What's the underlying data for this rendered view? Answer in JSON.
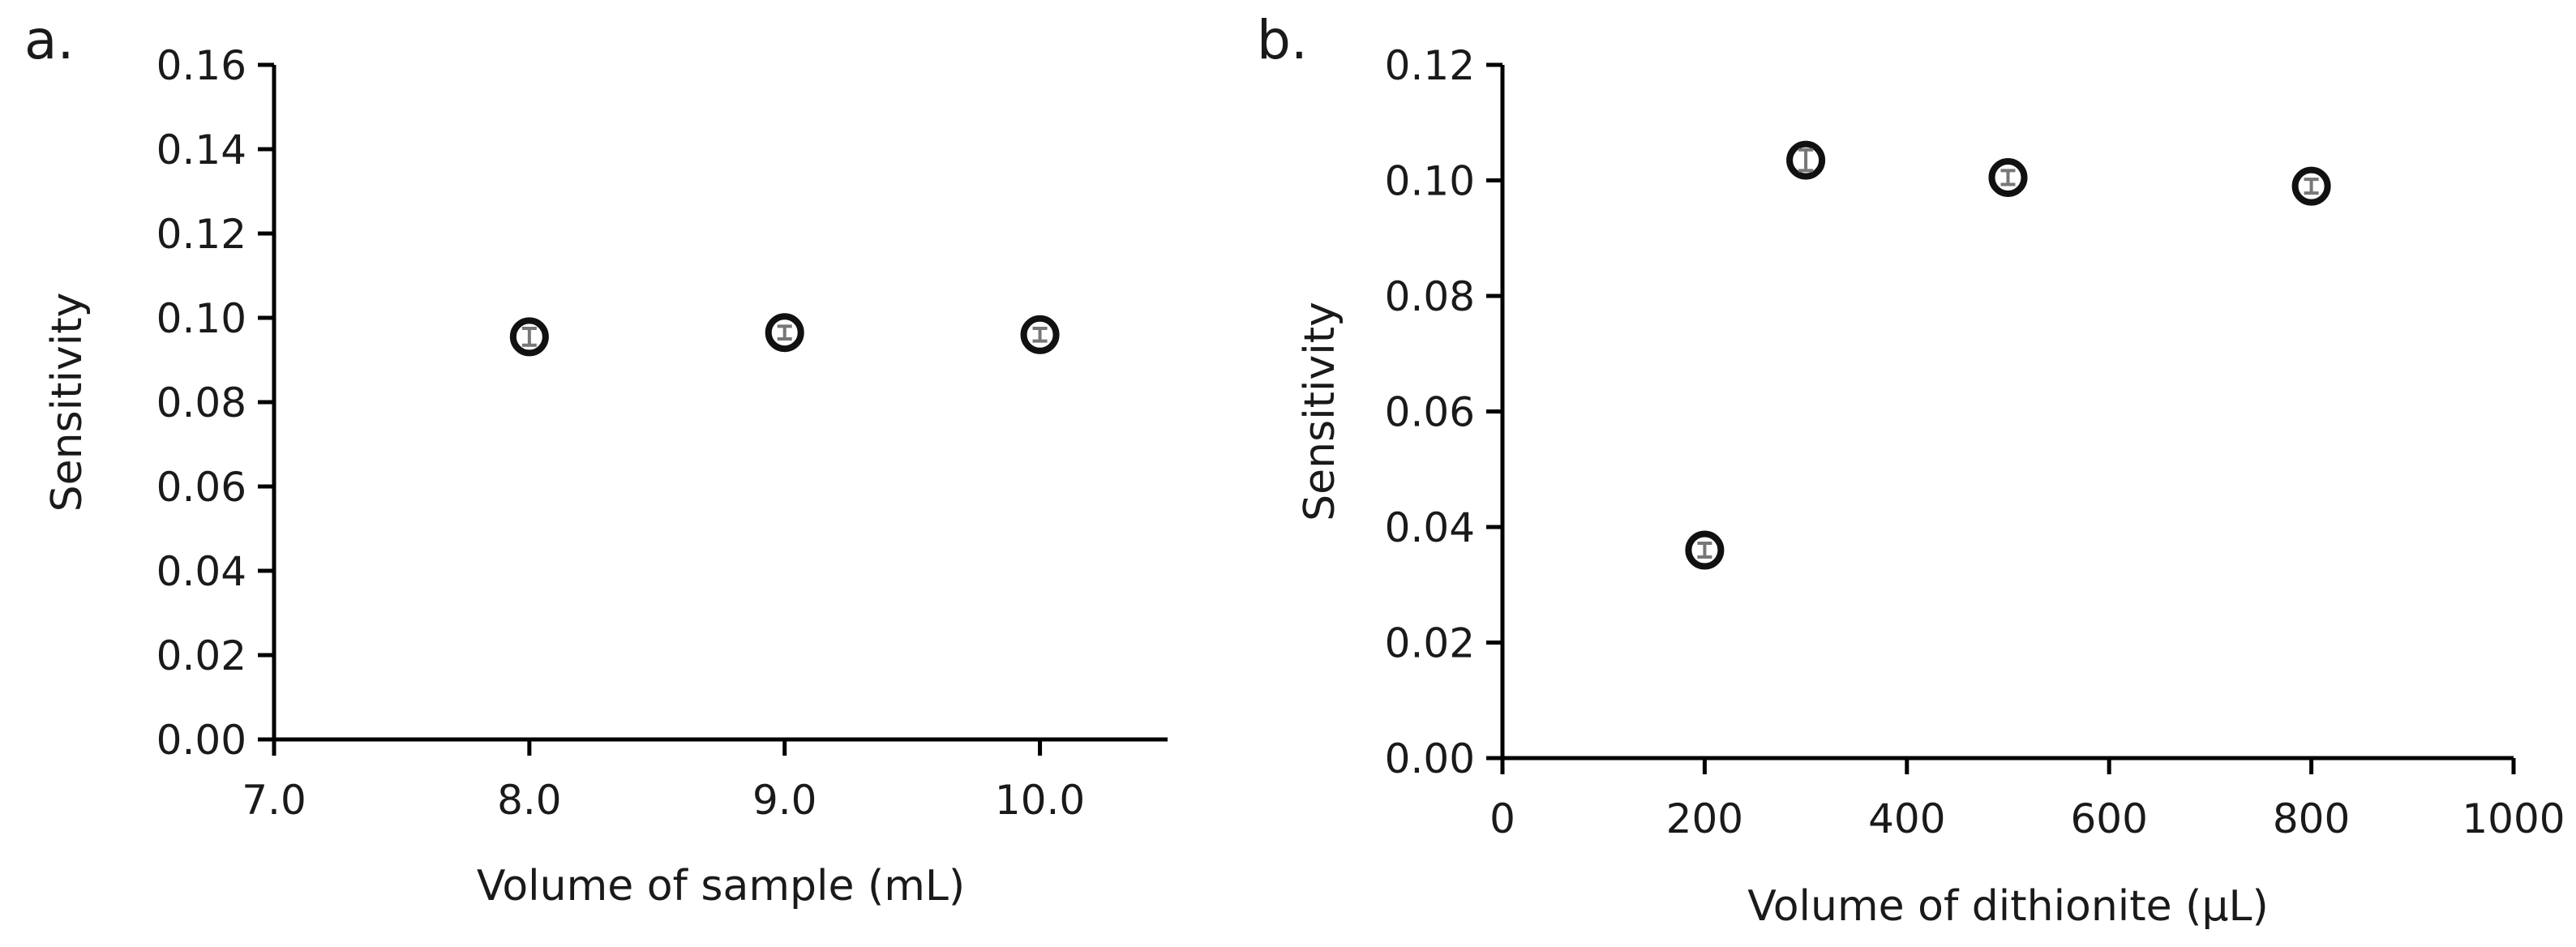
{
  "chart_data": [
    {
      "type": "scatter",
      "panel_label": "a.",
      "xlabel": "Volume of sample (mL)",
      "ylabel": "Sensitivity",
      "xlim": [
        7.0,
        10.5
      ],
      "ylim": [
        0.0,
        0.16
      ],
      "x_ticks": [
        7.0,
        8.0,
        9.0,
        10.0
      ],
      "x_tick_labels": [
        "7.0",
        "8.0",
        "9.0",
        "10.0"
      ],
      "y_ticks": [
        0.0,
        0.02,
        0.04,
        0.06,
        0.08,
        0.1,
        0.12,
        0.14,
        0.16
      ],
      "y_tick_labels": [
        "0.00",
        "0.02",
        "0.04",
        "0.06",
        "0.08",
        "0.10",
        "0.12",
        "0.14",
        "0.16"
      ],
      "grid": false,
      "points": [
        {
          "x": 8.0,
          "y": 0.0955,
          "err": 0.002
        },
        {
          "x": 9.0,
          "y": 0.0965,
          "err": 0.0015
        },
        {
          "x": 10.0,
          "y": 0.096,
          "err": 0.0015
        }
      ]
    },
    {
      "type": "scatter",
      "panel_label": "b.",
      "xlabel": "Volume of dithionite (µL)",
      "ylabel": "Sensitivity",
      "xlim": [
        0,
        1000
      ],
      "ylim": [
        0.0,
        0.12
      ],
      "x_ticks": [
        0,
        200,
        400,
        600,
        800,
        1000
      ],
      "x_tick_labels": [
        "0",
        "200",
        "400",
        "600",
        "800",
        "1000"
      ],
      "y_ticks": [
        0.0,
        0.02,
        0.04,
        0.06,
        0.08,
        0.1,
        0.12
      ],
      "y_tick_labels": [
        "0.00",
        "0.02",
        "0.04",
        "0.06",
        "0.08",
        "0.10",
        "0.12"
      ],
      "grid": false,
      "points": [
        {
          "x": 200,
          "y": 0.036,
          "err": 0.0012
        },
        {
          "x": 300,
          "y": 0.1035,
          "err": 0.0018
        },
        {
          "x": 500,
          "y": 0.1005,
          "err": 0.0012
        },
        {
          "x": 800,
          "y": 0.099,
          "err": 0.0012
        }
      ]
    }
  ]
}
